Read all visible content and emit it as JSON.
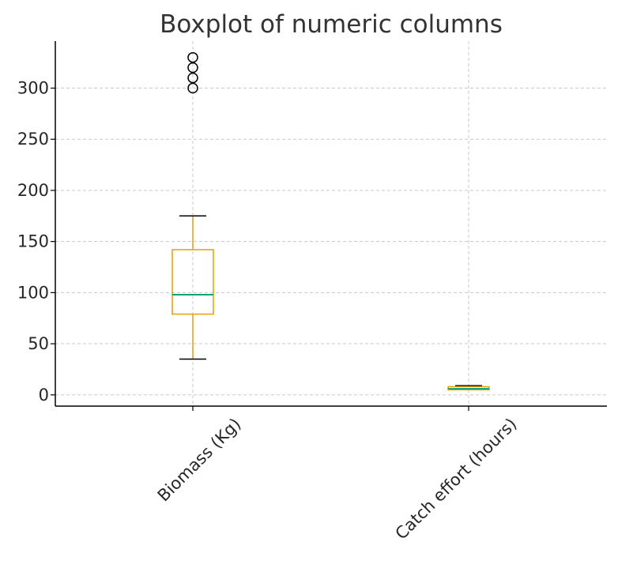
{
  "chart_data": {
    "type": "boxplot",
    "title": "Boxplot of numeric columns",
    "xlabel": "",
    "ylabel": "",
    "categories": [
      "Biomass (Kg)",
      "Catch effort (hours)"
    ],
    "ylim": [
      -11,
      346
    ],
    "yticks": [
      0,
      50,
      100,
      150,
      200,
      250,
      300
    ],
    "grid": true,
    "boxes": [
      {
        "category": "Biomass (Kg)",
        "whisker_low": 35,
        "q1": 79,
        "median": 98,
        "q3": 142,
        "whisker_high": 175,
        "outliers": [
          300,
          310,
          320,
          330
        ]
      },
      {
        "category": "Catch effort (hours)",
        "whisker_low": 5,
        "q1": 5,
        "median": 6,
        "q3": 8,
        "whisker_high": 9,
        "outliers": []
      }
    ],
    "colors": {
      "box": "#E69F00",
      "median": "#009E73",
      "whisker": "#E69F00",
      "cap": "#000000",
      "outlier": "#000000",
      "grid": "#c8c8c8",
      "axis": "#000000"
    }
  }
}
